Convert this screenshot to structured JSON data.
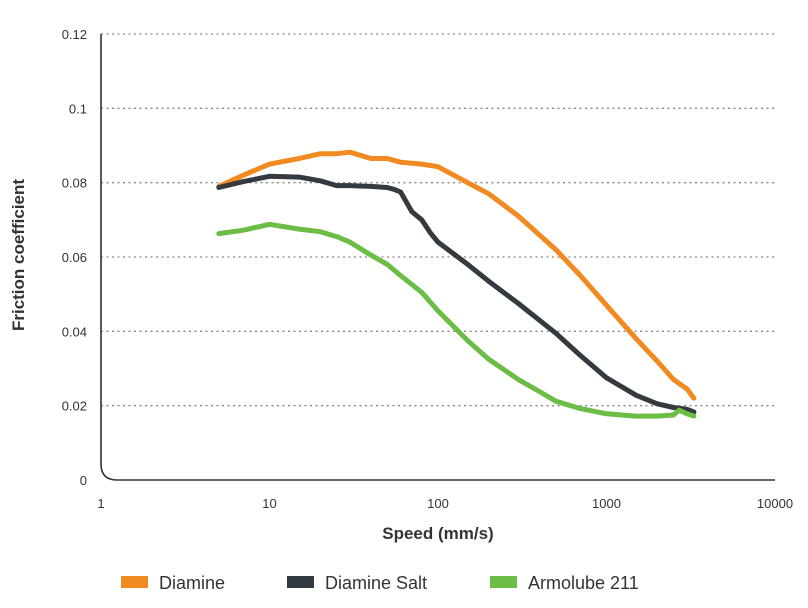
{
  "chart_data": {
    "type": "line",
    "title": "",
    "xlabel": "Speed (mm/s)",
    "ylabel": "Friction coefficient",
    "xscale": "log",
    "xlim": [
      1,
      10000
    ],
    "ylim": [
      0,
      0.12
    ],
    "grid": true,
    "legend_position": "bottom",
    "x_ticks": [
      "1",
      "10",
      "100",
      "1000",
      "10000"
    ],
    "y_ticks": [
      "0",
      "0.02",
      "0.04",
      "0.06",
      "0.08",
      "0.1",
      "0.12"
    ],
    "series": [
      {
        "name": "Diamine",
        "color": "#f28a22",
        "points": [
          [
            5,
            0.079
          ],
          [
            7,
            0.082
          ],
          [
            10,
            0.085
          ],
          [
            15,
            0.0865
          ],
          [
            20,
            0.0878
          ],
          [
            25,
            0.0878
          ],
          [
            30,
            0.0882
          ],
          [
            40,
            0.0865
          ],
          [
            50,
            0.0865
          ],
          [
            60,
            0.0855
          ],
          [
            80,
            0.085
          ],
          [
            100,
            0.0843
          ],
          [
            150,
            0.08
          ],
          [
            200,
            0.077
          ],
          [
            300,
            0.071
          ],
          [
            500,
            0.062
          ],
          [
            700,
            0.055
          ],
          [
            1000,
            0.047
          ],
          [
            1500,
            0.038
          ],
          [
            2000,
            0.032
          ],
          [
            2500,
            0.027
          ],
          [
            3000,
            0.0245
          ],
          [
            3300,
            0.022
          ]
        ]
      },
      {
        "name": "Diamine Salt",
        "color": "#333a40",
        "points": [
          [
            5,
            0.0787
          ],
          [
            7,
            0.0803
          ],
          [
            10,
            0.0817
          ],
          [
            15,
            0.0815
          ],
          [
            20,
            0.0805
          ],
          [
            25,
            0.0792
          ],
          [
            30,
            0.0792
          ],
          [
            40,
            0.079
          ],
          [
            50,
            0.0787
          ],
          [
            55,
            0.0782
          ],
          [
            60,
            0.0775
          ],
          [
            70,
            0.0722
          ],
          [
            80,
            0.07
          ],
          [
            90,
            0.0665
          ],
          [
            100,
            0.064
          ],
          [
            150,
            0.058
          ],
          [
            200,
            0.0535
          ],
          [
            300,
            0.0475
          ],
          [
            500,
            0.0395
          ],
          [
            700,
            0.0335
          ],
          [
            1000,
            0.0275
          ],
          [
            1500,
            0.0228
          ],
          [
            2000,
            0.0205
          ],
          [
            2500,
            0.0195
          ],
          [
            3000,
            0.019
          ],
          [
            3300,
            0.0183
          ]
        ]
      },
      {
        "name": "Armolube 211",
        "color": "#6cbd45",
        "points": [
          [
            5,
            0.0663
          ],
          [
            7,
            0.0672
          ],
          [
            10,
            0.0688
          ],
          [
            15,
            0.0675
          ],
          [
            20,
            0.0668
          ],
          [
            25,
            0.0655
          ],
          [
            30,
            0.064
          ],
          [
            40,
            0.0605
          ],
          [
            50,
            0.058
          ],
          [
            60,
            0.055
          ],
          [
            80,
            0.0505
          ],
          [
            100,
            0.0455
          ],
          [
            150,
            0.0375
          ],
          [
            200,
            0.0325
          ],
          [
            300,
            0.027
          ],
          [
            400,
            0.0238
          ],
          [
            500,
            0.0212
          ],
          [
            700,
            0.0192
          ],
          [
            1000,
            0.0178
          ],
          [
            1500,
            0.0172
          ],
          [
            2000,
            0.0172
          ],
          [
            2500,
            0.0175
          ],
          [
            2700,
            0.0188
          ],
          [
            3000,
            0.0178
          ],
          [
            3300,
            0.0172
          ]
        ]
      }
    ]
  }
}
